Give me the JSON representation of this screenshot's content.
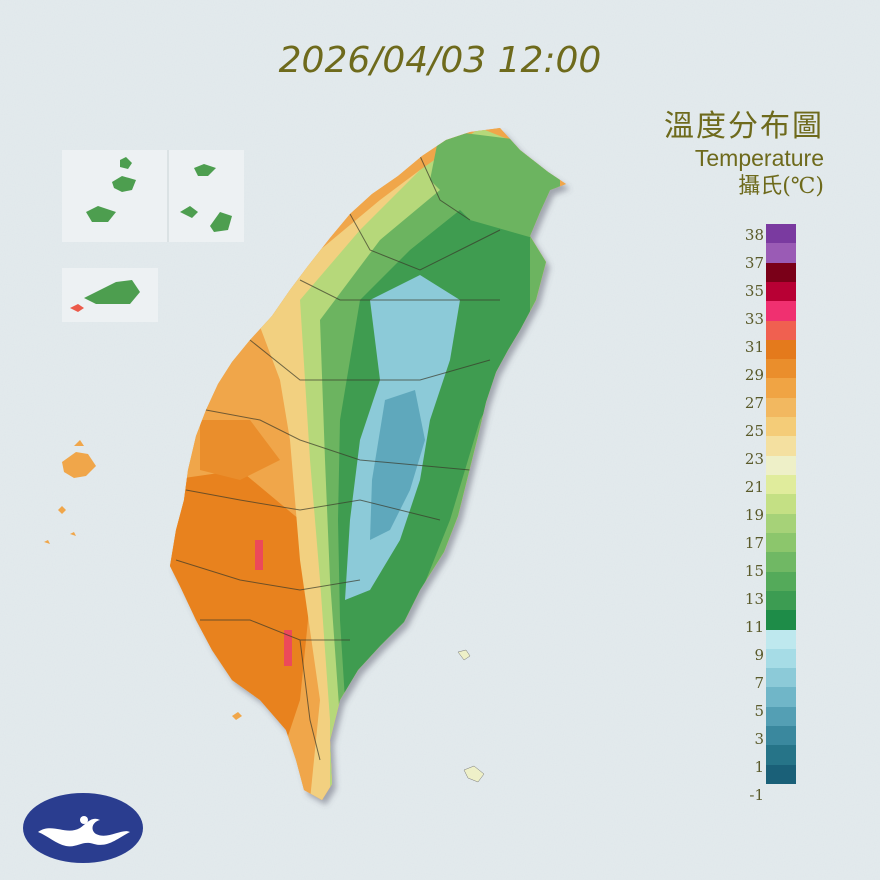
{
  "header": {
    "timestamp": "2026/04/03 12:00"
  },
  "legend": {
    "title_zh": "溫度分布圖",
    "title_en": "Temperature",
    "unit": "攝氏(℃)",
    "ticks": [
      "38",
      "37",
      "35",
      "33",
      "31",
      "29",
      "27",
      "25",
      "23",
      "21",
      "19",
      "17",
      "15",
      "13",
      "11",
      "9",
      "7",
      "5",
      "3",
      "1",
      "-1"
    ],
    "swatches": [
      {
        "color": "#7a3aa0"
      },
      {
        "color": "#9a5bb5"
      },
      {
        "color": "#7a0018"
      },
      {
        "color": "#b80034"
      },
      {
        "color": "#f03070"
      },
      {
        "color": "#f06050"
      },
      {
        "color": "#e47a1c"
      },
      {
        "color": "#ea8e2c"
      },
      {
        "color": "#f0a444"
      },
      {
        "color": "#f2b860"
      },
      {
        "color": "#f4cc78"
      },
      {
        "color": "#f4e0a0"
      },
      {
        "color": "#eef0c8"
      },
      {
        "color": "#e0ec9c"
      },
      {
        "color": "#c4e084"
      },
      {
        "color": "#a6d278"
      },
      {
        "color": "#8cc66c"
      },
      {
        "color": "#70b864"
      },
      {
        "color": "#54aa5a"
      },
      {
        "color": "#3c9c52"
      },
      {
        "color": "#1e8c48"
      },
      {
        "color": "#bee8ee"
      },
      {
        "color": "#a6dce6"
      },
      {
        "color": "#8ccad8"
      },
      {
        "color": "#70b6c8"
      },
      {
        "color": "#549fb4"
      },
      {
        "color": "#3a889e"
      },
      {
        "color": "#267488"
      },
      {
        "color": "#1a6078"
      }
    ]
  },
  "map": {
    "colors": {
      "hot": "#e8821e",
      "warm": "#f0a64a",
      "mild": "#f2d080",
      "cool": "#b6d87a",
      "green": "#6cb460",
      "mountain": "#3f9c50",
      "peak": "#8ccad8",
      "peak_dark": "#5fa8bc",
      "extreme": "#ec4a5a",
      "border": "#3a3a2a"
    }
  }
}
